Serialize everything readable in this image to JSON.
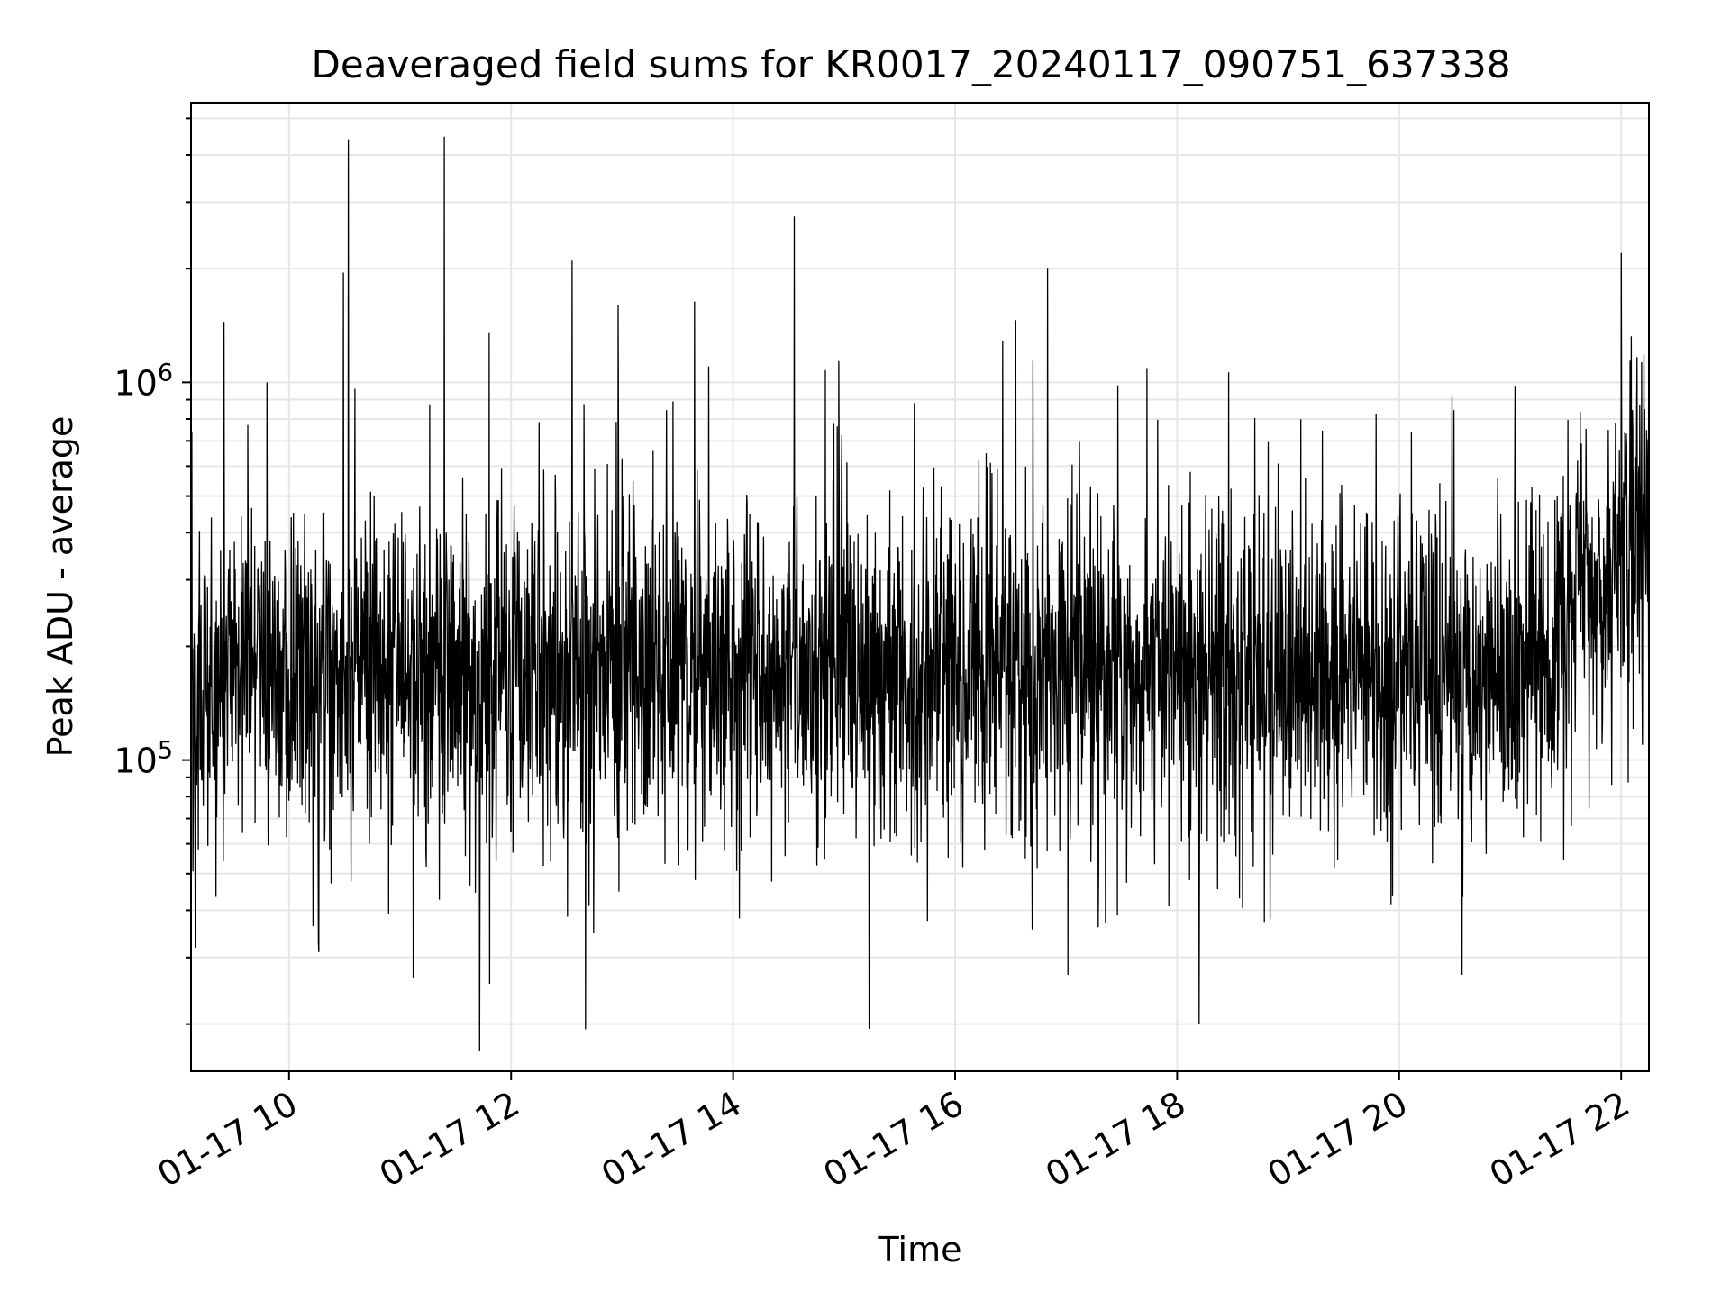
{
  "chart_data": {
    "type": "line",
    "title": "Deaveraged field sums for KR0017_20240117_090751_637338",
    "xlabel": "Time",
    "ylabel": "Peak ADU - average",
    "x_ticks": [
      "01-17 10",
      "01-17 12",
      "01-17 14",
      "01-17 16",
      "01-17 18",
      "01-17 20",
      "01-17 22"
    ],
    "x_tick_values": [
      "2024-01-17 10:00",
      "2024-01-17 12:00",
      "2024-01-17 14:00",
      "2024-01-17 16:00",
      "2024-01-17 18:00",
      "2024-01-17 20:00",
      "2024-01-17 22:00"
    ],
    "xlim": [
      "2024-01-17 09:07",
      "2024-01-17 22:15"
    ],
    "y_scale": "log",
    "ylim": [
      15000,
      5500000
    ],
    "y_ticks": [
      {
        "base": "10",
        "exp": "5",
        "value": 100000
      },
      {
        "base": "10",
        "exp": "6",
        "value": 1000000
      }
    ],
    "grid": true,
    "line_color": "#000000",
    "grid_color": "#e6e6e6",
    "series": [
      {
        "notable_points": [
          {
            "x": "2024-01-17 09:07",
            "y": 200000
          },
          {
            "x": "2024-01-17 09:11",
            "y": 58000
          },
          {
            "x": "2024-01-17 09:48",
            "y": 1000000
          },
          {
            "x": "2024-01-17 10:16",
            "y": 31000
          },
          {
            "x": "2024-01-17 10:32",
            "y": 4400000
          },
          {
            "x": "2024-01-17 11:43",
            "y": 17000
          },
          {
            "x": "2024-01-17 12:33",
            "y": 2100000
          },
          {
            "x": "2024-01-17 14:33",
            "y": 2750000
          },
          {
            "x": "2024-01-17 16:50",
            "y": 2000000
          },
          {
            "x": "2024-01-17 17:01",
            "y": 27000
          },
          {
            "x": "2024-01-17 18:12",
            "y": 20000
          },
          {
            "x": "2024-01-17 20:34",
            "y": 27000
          },
          {
            "x": "2024-01-17 22:00",
            "y": 2200000
          },
          {
            "x": "2024-01-17 22:15",
            "y": 450000
          }
        ]
      }
    ]
  }
}
